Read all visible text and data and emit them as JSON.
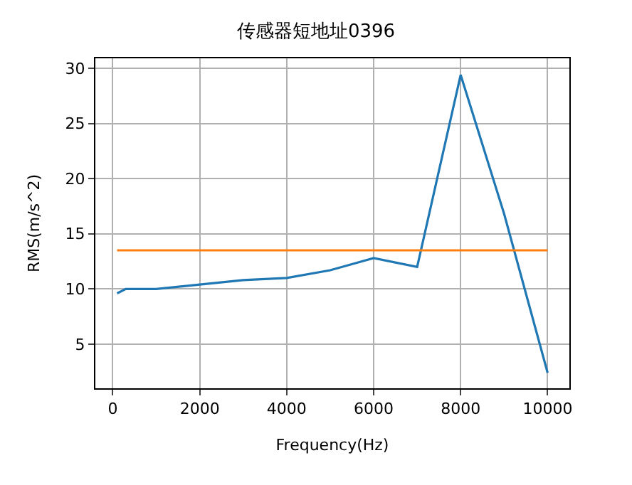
{
  "chart_data": {
    "type": "line",
    "title": "传感器短地址0396",
    "xlabel": "Frequency(Hz)",
    "ylabel": "RMS(m/s^2)",
    "series": [
      {
        "color": "#1f77b4",
        "x": [
          100,
          300,
          1000,
          2000,
          3000,
          4000,
          5000,
          6000,
          7000,
          8000,
          9000,
          10000
        ],
        "values": [
          9.6,
          10.0,
          10.0,
          10.4,
          10.8,
          11.0,
          11.7,
          12.8,
          12.0,
          29.4,
          16.8,
          2.4
        ]
      },
      {
        "color": "#ff7f0e",
        "x": [
          100,
          10000
        ],
        "values": [
          13.5,
          13.5
        ]
      }
    ],
    "xlim": [
      -400,
      10500
    ],
    "ylim": [
      1.0,
      30.9
    ],
    "xticks": [
      0,
      2000,
      4000,
      6000,
      8000,
      10000
    ],
    "yticks": [
      5,
      10,
      15,
      20,
      25,
      30
    ],
    "grid": true,
    "marker": "none",
    "line_style": "solid"
  }
}
